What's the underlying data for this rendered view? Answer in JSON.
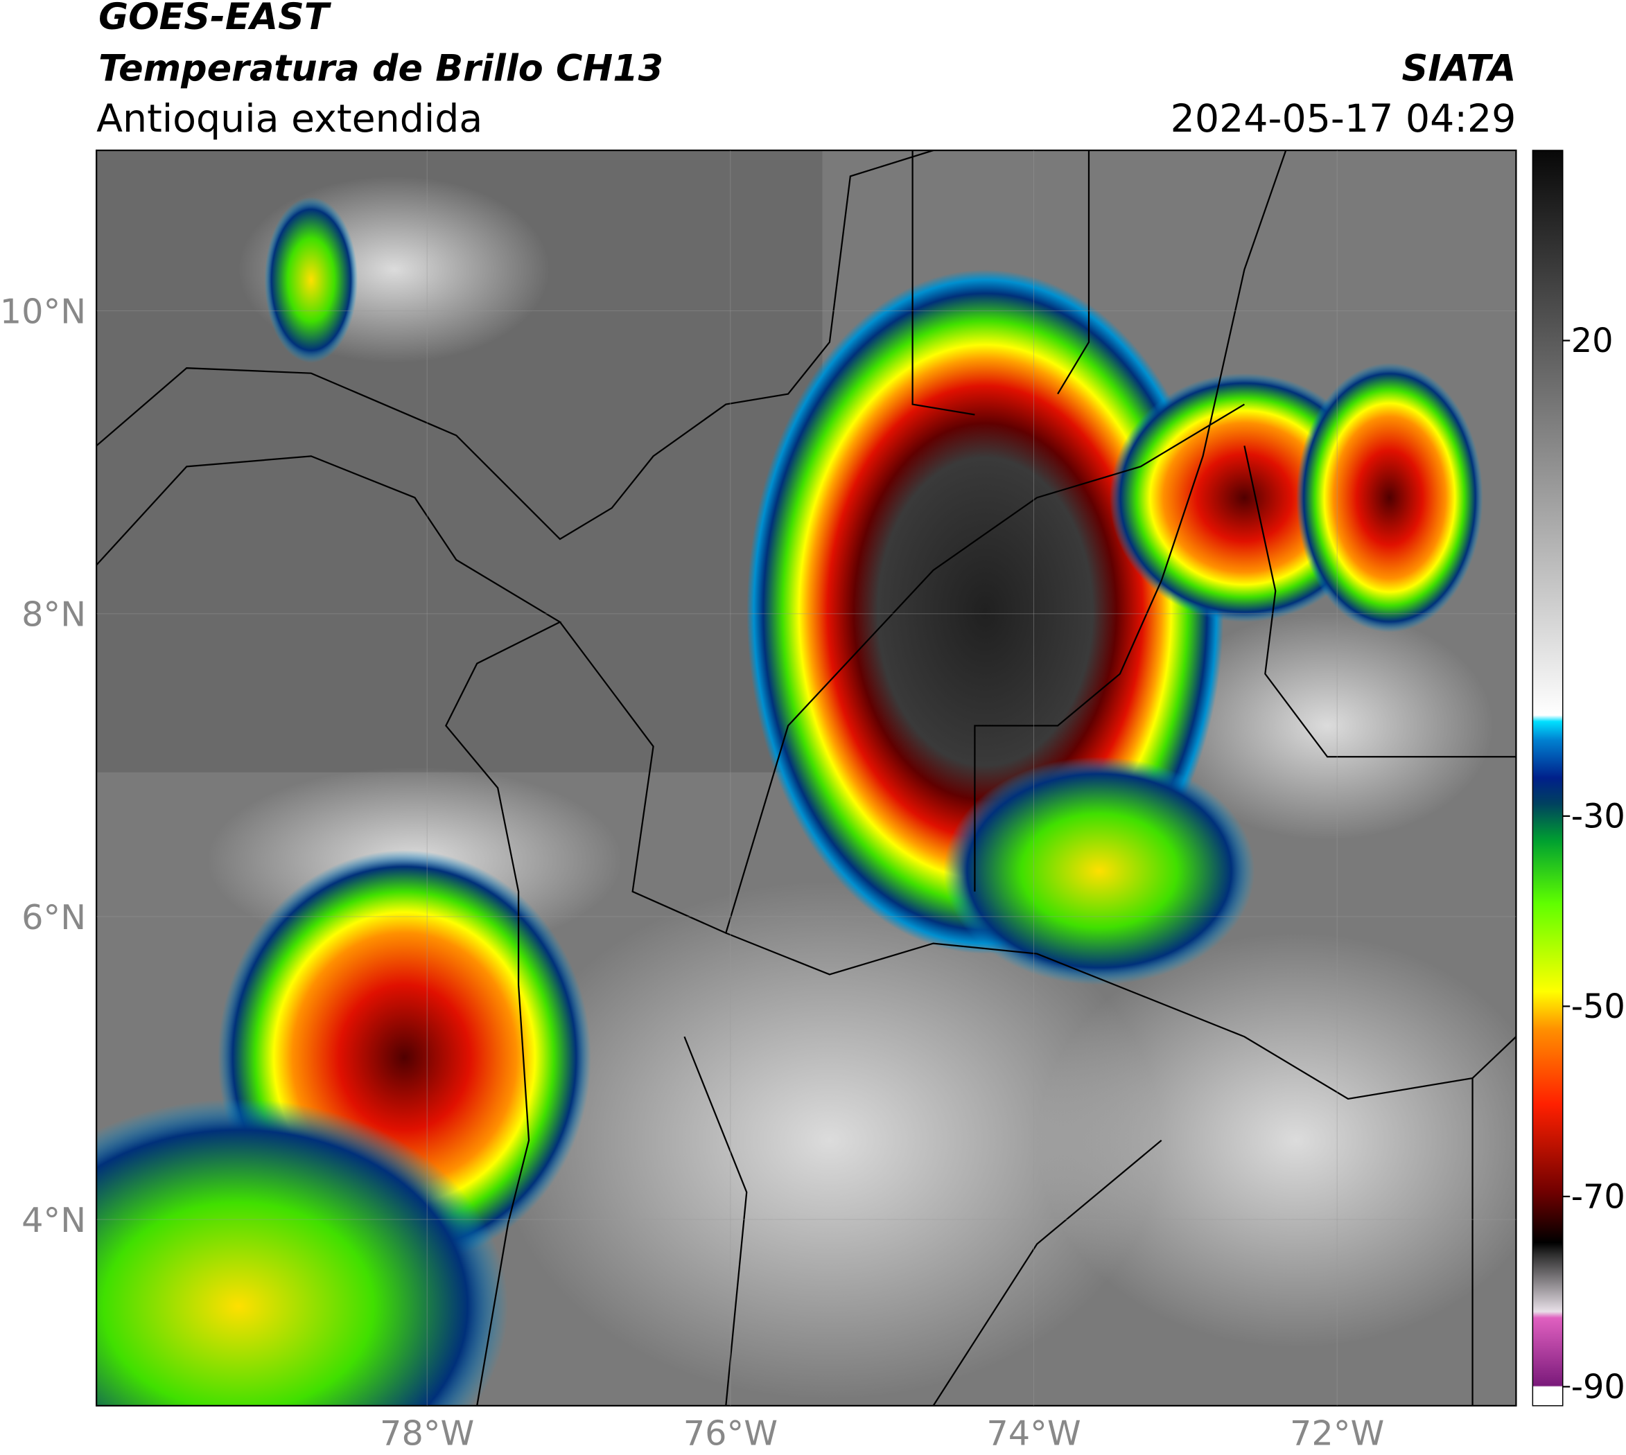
{
  "header": {
    "title": "GOES-EAST",
    "subtitle": "Temperatura de Brillo CH13",
    "region": "Antioquia extendida",
    "source": "SIATA",
    "datetime": "2024-05-17 04:29"
  },
  "map": {
    "xlim": [
      -80.18,
      -70.82
    ],
    "ylim": [
      2.77,
      11.06
    ],
    "grid": true,
    "xticks": [
      {
        "value": -78,
        "label": "78°W"
      },
      {
        "value": -76,
        "label": "76°W"
      },
      {
        "value": -74,
        "label": "74°W"
      },
      {
        "value": -72,
        "label": "72°W"
      }
    ],
    "yticks": [
      {
        "value": 4,
        "label": "4°N"
      },
      {
        "value": 6,
        "label": "6°N"
      },
      {
        "value": 8,
        "label": "8°N"
      },
      {
        "value": 10,
        "label": "10°N"
      }
    ]
  },
  "colorbar": {
    "lim": [
      -92,
      40
    ],
    "ticks": [
      20,
      -30,
      -50,
      -70,
      -90
    ]
  }
}
